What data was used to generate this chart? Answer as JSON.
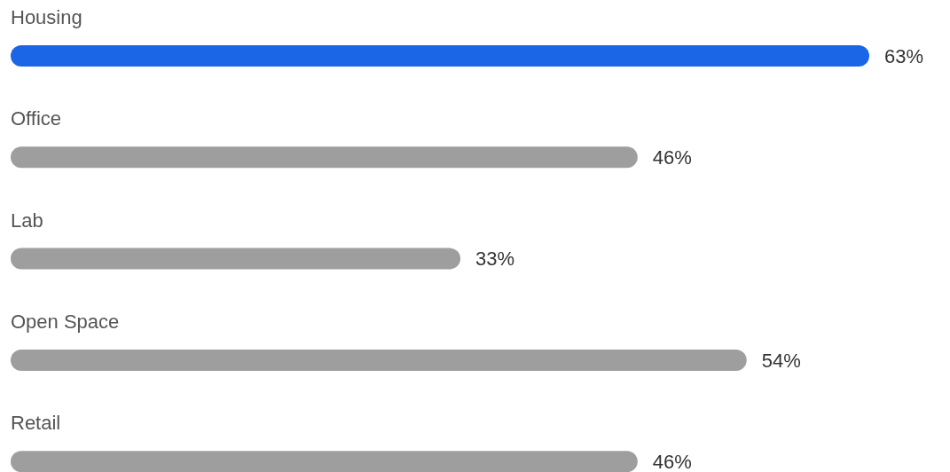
{
  "chart_data": {
    "type": "bar",
    "orientation": "horizontal",
    "categories": [
      "Housing",
      "Office",
      "Lab",
      "Open Space",
      "Retail"
    ],
    "values": [
      63,
      46,
      33,
      54,
      46
    ],
    "colors": [
      "#1a66e6",
      "#9e9e9e",
      "#9e9e9e",
      "#9e9e9e",
      "#9e9e9e"
    ],
    "value_labels": [
      "63%",
      "46%",
      "33%",
      "54%",
      "46%"
    ]
  }
}
